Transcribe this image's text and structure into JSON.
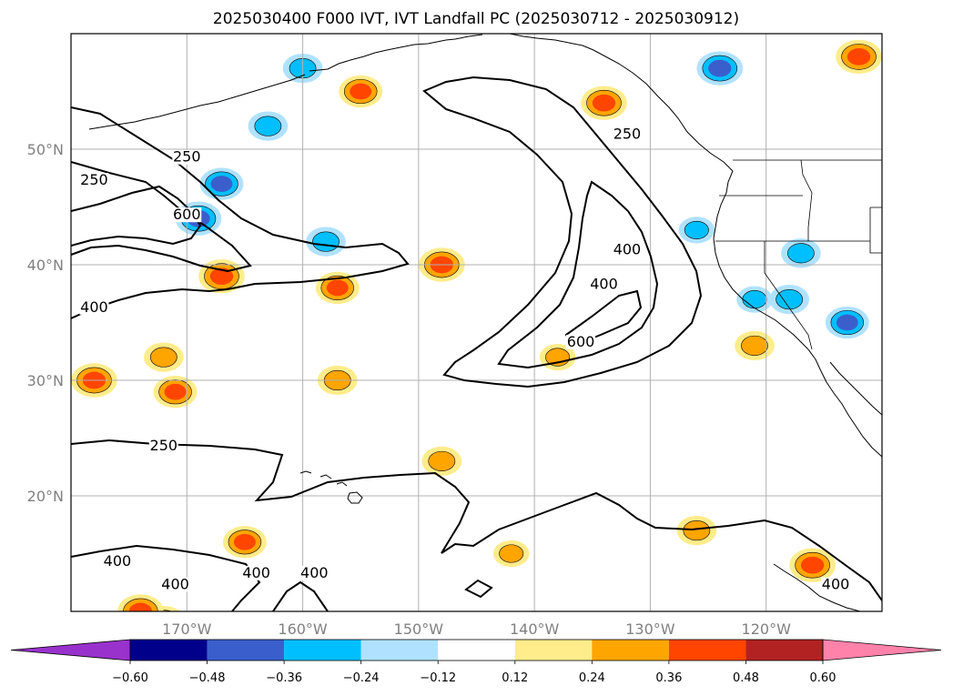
{
  "chart_data": {
    "type": "heatmap",
    "title": "2025030400 F000 IVT, IVT Landfall PC (2025030712 - 2025030912)",
    "map": {
      "lon_range": [
        180,
        110
      ],
      "lat_range": [
        10,
        60
      ],
      "lon_ticks": [
        {
          "value": 170,
          "label": "170°W"
        },
        {
          "value": 160,
          "label": "160°W"
        },
        {
          "value": 150,
          "label": "150°W"
        },
        {
          "value": 140,
          "label": "140°W"
        },
        {
          "value": 130,
          "label": "130°W"
        },
        {
          "value": 120,
          "label": "120°W"
        }
      ],
      "lat_ticks": [
        {
          "value": 50,
          "label": "50°N"
        },
        {
          "value": 40,
          "label": "40°N"
        },
        {
          "value": 30,
          "label": "30°N"
        },
        {
          "value": 20,
          "label": "20°N"
        }
      ],
      "grid": true
    },
    "ivt_contours": {
      "levels": [
        250,
        400,
        600
      ],
      "labels": [
        {
          "text": "250",
          "lon": 170,
          "lat": 49
        },
        {
          "text": "250",
          "lon": 178,
          "lat": 47
        },
        {
          "text": "600",
          "lon": 170,
          "lat": 44
        },
        {
          "text": "400",
          "lon": 178,
          "lat": 36
        },
        {
          "text": "250",
          "lon": 132,
          "lat": 51
        },
        {
          "text": "400",
          "lon": 132,
          "lat": 41
        },
        {
          "text": "400",
          "lon": 134,
          "lat": 38
        },
        {
          "text": "600",
          "lon": 136,
          "lat": 33
        },
        {
          "text": "250",
          "lon": 172,
          "lat": 24
        },
        {
          "text": "400",
          "lon": 176,
          "lat": 14
        },
        {
          "text": "400",
          "lon": 171,
          "lat": 12
        },
        {
          "text": "400",
          "lon": 164,
          "lat": 13
        },
        {
          "text": "400",
          "lon": 159,
          "lat": 13
        },
        {
          "text": "400",
          "lon": 114,
          "lat": 12
        }
      ]
    },
    "colorbar": {
      "ticks": [
        "−0.60",
        "−0.48",
        "−0.36",
        "−0.24",
        "−0.12",
        "0.12",
        "0.24",
        "0.36",
        "0.48",
        "0.60"
      ],
      "colors": [
        "#9932cc",
        "#00008b",
        "#3a5fcd",
        "#00bfff",
        "#b0e2ff",
        "#ffffff",
        "#ffec8b",
        "#ffa500",
        "#ff4500",
        "#b22222",
        "#ff82ab"
      ],
      "extend": "both"
    },
    "pc_anomalies": [
      {
        "lon": 160,
        "lat": 57,
        "value": -0.3
      },
      {
        "lon": 163,
        "lat": 52,
        "value": -0.3
      },
      {
        "lon": 167,
        "lat": 47,
        "value": -0.36
      },
      {
        "lon": 169,
        "lat": 44,
        "value": -0.4
      },
      {
        "lon": 158,
        "lat": 42,
        "value": -0.3
      },
      {
        "lon": 167,
        "lat": 39,
        "value": 0.4
      },
      {
        "lon": 148,
        "lat": 40,
        "value": 0.4
      },
      {
        "lon": 157,
        "lat": 38,
        "value": 0.36
      },
      {
        "lon": 178,
        "lat": 30,
        "value": 0.4
      },
      {
        "lon": 171,
        "lat": 29,
        "value": 0.36
      },
      {
        "lon": 157,
        "lat": 30,
        "value": 0.3
      },
      {
        "lon": 172,
        "lat": 32,
        "value": 0.3
      },
      {
        "lon": 165,
        "lat": 16,
        "value": 0.36
      },
      {
        "lon": 172,
        "lat": 9,
        "value": 0.4
      },
      {
        "lon": 174,
        "lat": 10,
        "value": 0.4
      },
      {
        "lon": 142,
        "lat": 15,
        "value": 0.24
      },
      {
        "lon": 148,
        "lat": 23,
        "value": 0.3
      },
      {
        "lon": 134,
        "lat": 54,
        "value": 0.4
      },
      {
        "lon": 155,
        "lat": 55,
        "value": 0.36
      },
      {
        "lon": 124,
        "lat": 57,
        "value": -0.4
      },
      {
        "lon": 112,
        "lat": 58,
        "value": 0.4
      },
      {
        "lon": 118,
        "lat": 37,
        "value": -0.3
      },
      {
        "lon": 113,
        "lat": 35,
        "value": -0.36
      },
      {
        "lon": 117,
        "lat": 41,
        "value": -0.3
      },
      {
        "lon": 126,
        "lat": 43,
        "value": -0.24
      },
      {
        "lon": 121,
        "lat": 37,
        "value": -0.24
      },
      {
        "lon": 121,
        "lat": 33,
        "value": 0.3
      },
      {
        "lon": 116,
        "lat": 14,
        "value": 0.4
      },
      {
        "lon": 126,
        "lat": 17,
        "value": 0.3
      },
      {
        "lon": 138,
        "lat": 32,
        "value": 0.24
      }
    ]
  }
}
